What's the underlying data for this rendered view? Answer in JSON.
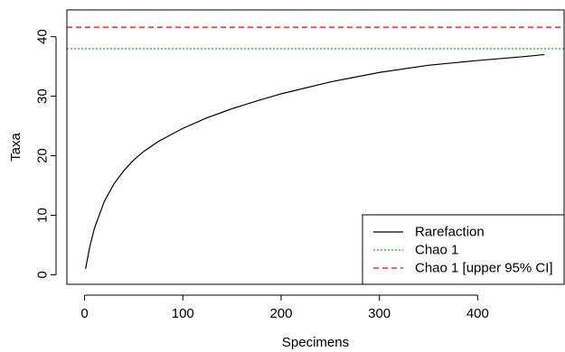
{
  "chart_data": {
    "type": "line",
    "xlabel": "Specimens",
    "ylabel": "Taxa",
    "xlim": [
      -18,
      488
    ],
    "ylim": [
      -1.6,
      44.5
    ],
    "x_ticks": [
      0,
      100,
      200,
      300,
      400
    ],
    "y_ticks": [
      0,
      10,
      20,
      30,
      40
    ],
    "grid": false,
    "legend_position": "bottom-right",
    "series": [
      {
        "name": "Rarefaction",
        "style": "solid",
        "color": "#000000",
        "x": [
          1,
          5,
          10,
          20,
          30,
          40,
          50,
          60,
          75,
          100,
          125,
          150,
          175,
          200,
          250,
          300,
          350,
          400,
          450,
          468
        ],
        "y": [
          1.0,
          4.5,
          7.8,
          12.3,
          15.3,
          17.5,
          19.3,
          20.7,
          22.4,
          24.6,
          26.4,
          27.9,
          29.2,
          30.4,
          32.4,
          34.0,
          35.2,
          36.0,
          36.7,
          37.0
        ]
      },
      {
        "name": "Chao 1",
        "style": "dotted",
        "color": "#00cc00",
        "y_constant": 38.0
      },
      {
        "name": "Chao 1 [upper 95% CI]",
        "style": "dashed",
        "color": "#ff0000",
        "y_constant": 41.6
      }
    ]
  }
}
